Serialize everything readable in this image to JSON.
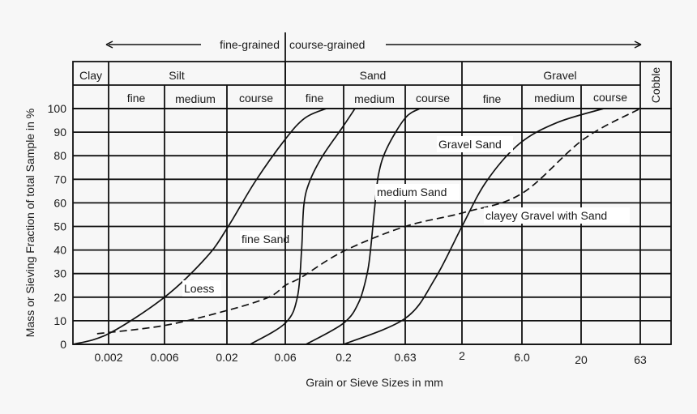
{
  "chart_data": {
    "type": "line",
    "title": "",
    "xlabel": "Grain or Sieve Sizes in mm",
    "ylabel": "Mass or Sieving Fraction of total Sample in %",
    "xscale": "log",
    "xlim": [
      0.001,
      113
    ],
    "ylim": [
      0,
      100
    ],
    "grid": true,
    "x_ticks": [
      "0.002",
      "0.006",
      "0.02",
      "0.06",
      "0.2",
      "0.63",
      "2",
      "6.0",
      "20",
      "63"
    ],
    "y_ticks": [
      "0",
      "10",
      "20",
      "30",
      "40",
      "50",
      "60",
      "70",
      "80",
      "90",
      "100"
    ],
    "direction": {
      "left": "fine-grained",
      "right": "course-grained"
    },
    "classes": {
      "main": [
        "Clay",
        "Silt",
        "Sand",
        "Gravel",
        "Cobble"
      ],
      "sub": [
        "fine",
        "medium",
        "course",
        "fine",
        "medium",
        "course",
        "fine",
        "medium",
        "course"
      ]
    },
    "series": [
      {
        "name": "Loess",
        "style": "solid",
        "points": [
          [
            0.0009,
            0
          ],
          [
            0.002,
            4.5
          ],
          [
            0.006,
            20
          ],
          [
            0.0135,
            37
          ],
          [
            0.0205,
            50
          ],
          [
            0.034,
            69
          ],
          [
            0.06,
            87
          ],
          [
            0.09,
            96
          ],
          [
            0.14,
            100
          ]
        ]
      },
      {
        "name": "fine Sand",
        "style": "solid",
        "points": [
          [
            0.031,
            0
          ],
          [
            0.06,
            9
          ],
          [
            0.077,
            20
          ],
          [
            0.084,
            40
          ],
          [
            0.088,
            59
          ],
          [
            0.099,
            69
          ],
          [
            0.13,
            80
          ],
          [
            0.195,
            92
          ],
          [
            0.247,
            100
          ]
        ]
      },
      {
        "name": "medium Sand",
        "style": "solid",
        "points": [
          [
            0.092,
            0
          ],
          [
            0.2,
            9
          ],
          [
            0.266,
            18
          ],
          [
            0.31,
            30
          ],
          [
            0.33,
            40
          ],
          [
            0.355,
            57
          ],
          [
            0.383,
            72
          ],
          [
            0.446,
            83
          ],
          [
            0.63,
            96
          ],
          [
            0.85,
            100
          ]
        ]
      },
      {
        "name": "Gravel Sand",
        "style": "solid",
        "points": [
          [
            0.2,
            0
          ],
          [
            0.63,
            11
          ],
          [
            1.16,
            28
          ],
          [
            2,
            50
          ],
          [
            3.12,
            69
          ],
          [
            5.7,
            85
          ],
          [
            12.2,
            94
          ],
          [
            31,
            100
          ]
        ]
      },
      {
        "name": "clayey Gravel with Sand",
        "style": "dashed",
        "points": [
          [
            0.0016,
            4.5
          ],
          [
            0.006,
            8
          ],
          [
            0.0205,
            14.5
          ],
          [
            0.044,
            20
          ],
          [
            0.06,
            25
          ],
          [
            0.084,
            28.5
          ],
          [
            0.2,
            39.5
          ],
          [
            0.63,
            50
          ],
          [
            2.1,
            56
          ],
          [
            6,
            64
          ],
          [
            21,
            87
          ],
          [
            63,
            100
          ]
        ]
      }
    ]
  }
}
